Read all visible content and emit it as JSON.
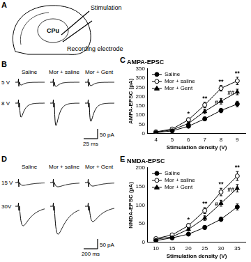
{
  "panel_labels": [
    "A",
    "B",
    "C",
    "D",
    "E"
  ],
  "diagram": {
    "stimulation": "Stimulation",
    "region": "CPu",
    "recording": "Recording electrode"
  },
  "traces": [
    {
      "columns": [
        "Saline",
        "Mor + saline",
        "Mor + Gent"
      ],
      "rows": [
        "5 V",
        "8 V"
      ],
      "scale_bar": {
        "y": "50 pA",
        "x": "25 ms"
      }
    },
    {
      "columns": [
        "Saline",
        "Mor + saline",
        "Mor + Gent"
      ],
      "rows": [
        "15 V",
        "30V"
      ],
      "scale_bar": {
        "y": "50 pA",
        "x": "200 ms"
      }
    }
  ],
  "chart_data": [
    {
      "type": "line",
      "title": "AMPA-EPSC",
      "x_label": "Stimulation density (V)",
      "y_label": "AMPA-EPSC (pA)",
      "x": [
        4,
        5,
        6,
        7,
        8,
        9
      ],
      "xlim": [
        3.5,
        9.5
      ],
      "xticks": [
        4,
        5,
        6,
        7,
        8,
        9
      ],
      "ylim": [
        0,
        350
      ],
      "yticks": [
        0,
        50,
        100,
        150,
        200,
        250,
        300,
        350
      ],
      "grid": false,
      "legend": "upper left",
      "series": [
        {
          "name": "Saline",
          "color": "#000000",
          "marker": "circle",
          "values": [
            5,
            15,
            40,
            80,
            125,
            160
          ],
          "errors": [
            3,
            5,
            8,
            10,
            12,
            15
          ]
        },
        {
          "name": "Mor + saline",
          "color": "#000000",
          "marker": "circle_open",
          "values": [
            10,
            25,
            75,
            155,
            245,
            285
          ],
          "errors": [
            3,
            5,
            10,
            15,
            15,
            20
          ]
        },
        {
          "name": "Mor + Gent",
          "color": "#000000",
          "marker": "triangle",
          "values": [
            8,
            20,
            55,
            120,
            175,
            225
          ],
          "errors": [
            3,
            5,
            8,
            12,
            15,
            15
          ]
        }
      ],
      "annotations": [
        {
          "x": 6,
          "series": "Mor + saline",
          "text": "*"
        },
        {
          "x": 7,
          "series": "Mor + saline",
          "text": "**"
        },
        {
          "x": 8,
          "series": "Mor + saline",
          "text": "**"
        },
        {
          "x": 9,
          "series": "Mor + saline",
          "text": "**"
        },
        {
          "x": 8,
          "series": "Mor + Gent",
          "text": "#"
        },
        {
          "x": 9,
          "series": "Mor + Gent",
          "text": "##"
        }
      ]
    },
    {
      "type": "line",
      "title": "NMDA-EPSC",
      "x_label": "Stimulation density (V)",
      "y_label": "NMDA-EPSC (pA)",
      "x": [
        10,
        15,
        20,
        25,
        30,
        35
      ],
      "xlim": [
        7.5,
        37.5
      ],
      "xticks": [
        10,
        15,
        20,
        25,
        30,
        35
      ],
      "ylim": [
        0,
        200
      ],
      "yticks": [
        0,
        50,
        100,
        150,
        200
      ],
      "grid": false,
      "legend": "upper left",
      "series": [
        {
          "name": "Saline",
          "color": "#000000",
          "marker": "circle",
          "values": [
            5,
            12,
            22,
            40,
            62,
            95
          ],
          "errors": [
            2,
            3,
            4,
            5,
            6,
            8
          ]
        },
        {
          "name": "Mor + saline",
          "color": "#000000",
          "marker": "circle_open",
          "values": [
            10,
            20,
            45,
            85,
            135,
            178
          ],
          "errors": [
            2,
            3,
            5,
            8,
            10,
            12
          ]
        },
        {
          "name": "Mor + Gent",
          "color": "#000000",
          "marker": "triangle",
          "values": [
            8,
            15,
            35,
            65,
            105,
            145
          ],
          "errors": [
            2,
            3,
            4,
            6,
            8,
            10
          ]
        }
      ],
      "annotations": [
        {
          "x": 20,
          "series": "Mor + saline",
          "text": "*"
        },
        {
          "x": 25,
          "series": "Mor + saline",
          "text": "**"
        },
        {
          "x": 30,
          "series": "Mor + saline",
          "text": "**"
        },
        {
          "x": 35,
          "series": "Mor + saline",
          "text": "**"
        },
        {
          "x": 30,
          "series": "Mor + Gent",
          "text": "#"
        },
        {
          "x": 35,
          "series": "Mor + Gent",
          "text": "##"
        }
      ]
    }
  ]
}
